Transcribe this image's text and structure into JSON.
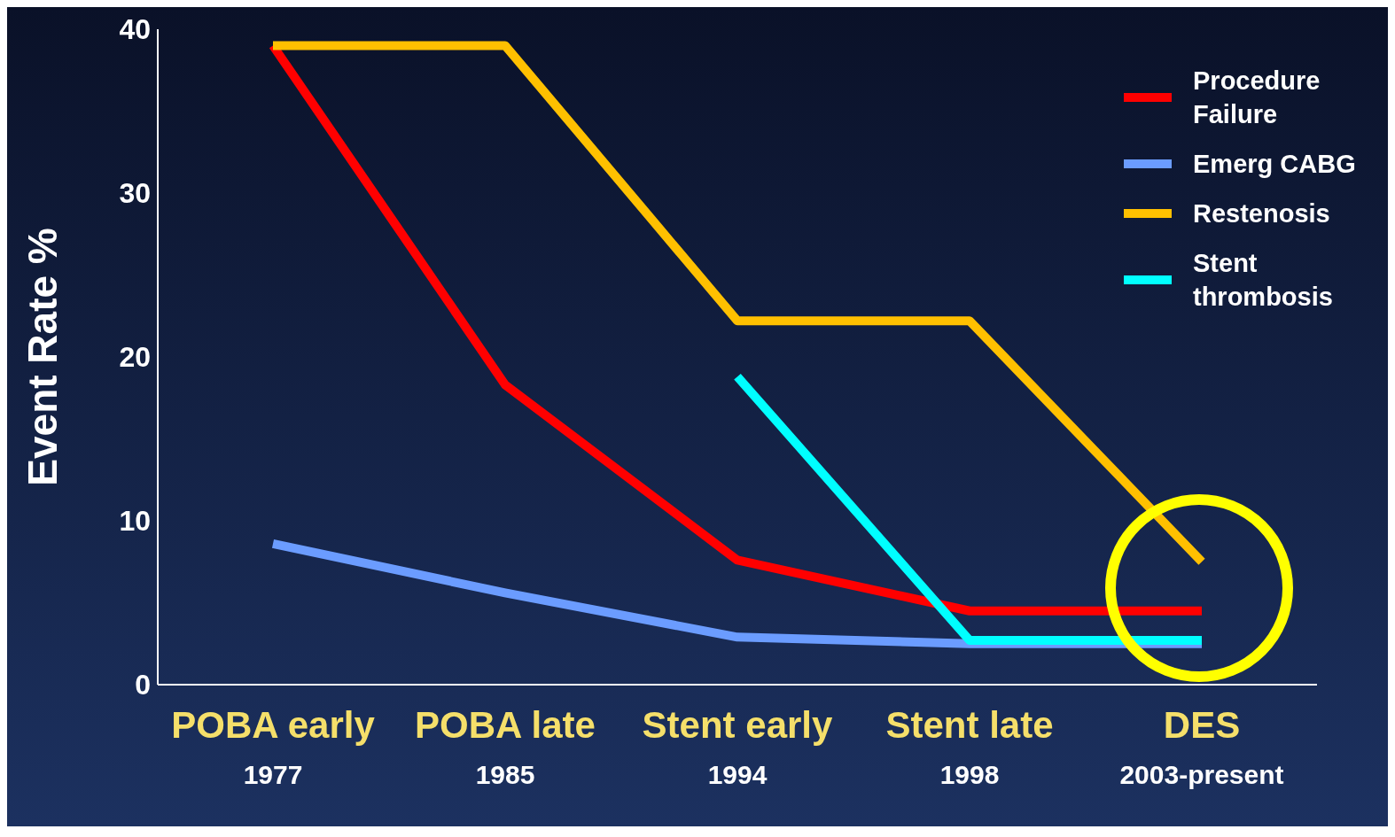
{
  "chart_data": {
    "type": "line",
    "ylabel": "Event Rate %",
    "categories": [
      "POBA early\n1977",
      "POBA late\n1985",
      "Stent early\n1994",
      "Stent late\n1998",
      "DES\n2003-present"
    ],
    "series": [
      {
        "name": "Procedure Failure",
        "color": "#ff0000",
        "values": [
          39,
          18.3,
          7.6,
          4.5,
          4.5
        ]
      },
      {
        "name": "Emerg CABG",
        "color": "#6b9cff",
        "values": [
          8.6,
          5.6,
          2.9,
          2.5,
          2.5
        ]
      },
      {
        "name": "Restenosis",
        "color": "#ffc000",
        "values": [
          39,
          39,
          22.2,
          22.2,
          7.5
        ]
      },
      {
        "name": "Stent thrombosis",
        "color": "#00ffff",
        "values": [
          null,
          null,
          18.8,
          2.7,
          2.7
        ]
      }
    ],
    "ylim": [
      0,
      40
    ],
    "yticks": [
      0,
      10,
      20,
      30,
      40
    ],
    "grid": false,
    "legend": "top right",
    "marker": "none",
    "line_style": "solid"
  }
}
